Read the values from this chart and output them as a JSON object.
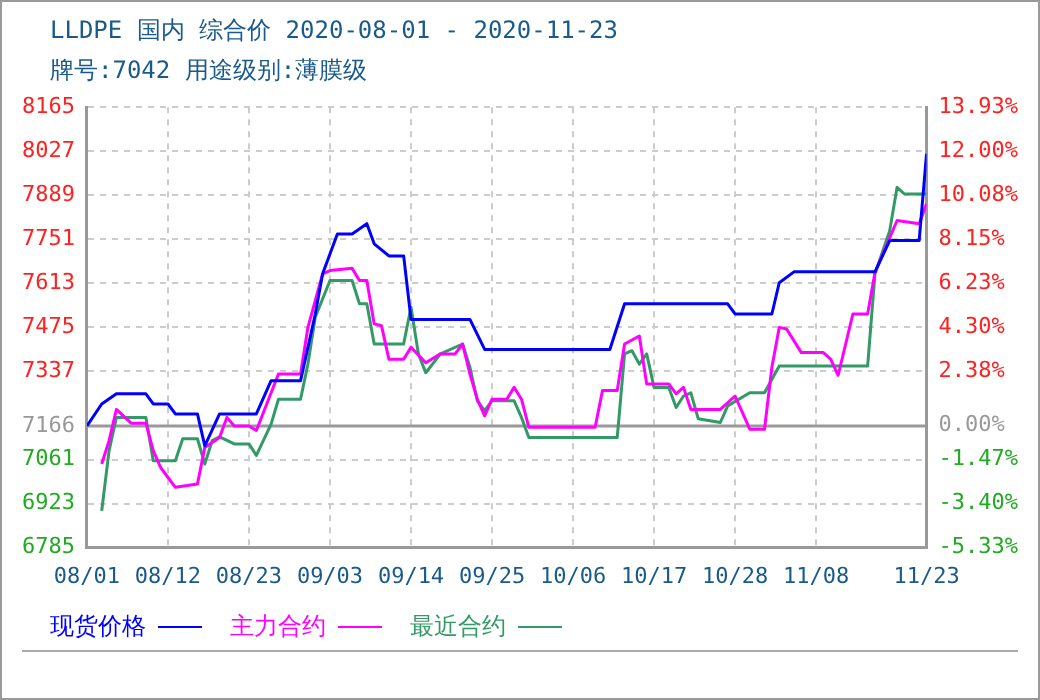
{
  "chart_data": {
    "type": "line",
    "title": "LLDPE 国内 综合价 2020-08-01 - 2020-11-23",
    "subtitle": "牌号:7042 用途级别:薄膜级",
    "xlim": [
      "2020-08-01",
      "2020-11-23"
    ],
    "xticks": [
      {
        "value": "2020-08-01",
        "label": "08/01"
      },
      {
        "value": "2020-08-12",
        "label": "08/12"
      },
      {
        "value": "2020-08-23",
        "label": "08/23"
      },
      {
        "value": "2020-09-03",
        "label": "09/03"
      },
      {
        "value": "2020-09-14",
        "label": "09/14"
      },
      {
        "value": "2020-09-25",
        "label": "09/25"
      },
      {
        "value": "2020-10-06",
        "label": "10/06"
      },
      {
        "value": "2020-10-17",
        "label": "10/17"
      },
      {
        "value": "2020-10-28",
        "label": "10/28"
      },
      {
        "value": "2020-11-08",
        "label": "11/08"
      },
      {
        "value": "2020-11-23",
        "label": "11/23"
      }
    ],
    "ylim": [
      6785,
      8165
    ],
    "yticks": [
      6785,
      6923,
      7061,
      7166,
      7337,
      7475,
      7613,
      7751,
      7889,
      8027,
      8165
    ],
    "y2lim": [
      -5.33,
      13.93
    ],
    "y2ticks": [
      {
        "value": -5.33,
        "label": "-5.33%"
      },
      {
        "value": -3.4,
        "label": "-3.40%"
      },
      {
        "value": -1.47,
        "label": "-1.47%"
      },
      {
        "value": 0,
        "label": "0.00%"
      },
      {
        "value": 2.38,
        "label": "2.38%"
      },
      {
        "value": 4.3,
        "label": "4.30%"
      },
      {
        "value": 6.23,
        "label": "6.23%"
      },
      {
        "value": 8.15,
        "label": "8.15%"
      },
      {
        "value": 10.08,
        "label": "10.08%"
      },
      {
        "value": 12,
        "label": "12.00%"
      },
      {
        "value": 13.93,
        "label": "13.93%"
      }
    ],
    "grid": true,
    "legend": "bottom",
    "marker": "none",
    "line_style": "solid",
    "ref_lines": [
      {
        "axis": "y",
        "value": 7166,
        "color": "#999999"
      }
    ],
    "series": [
      {
        "name": "现货价格",
        "color": "#0000ff",
        "x": [
          "2020-08-01",
          "2020-08-03",
          "2020-08-05",
          "2020-08-09",
          "2020-08-10",
          "2020-08-12",
          "2020-08-13",
          "2020-08-16",
          "2020-08-17",
          "2020-08-19",
          "2020-08-24",
          "2020-08-26",
          "2020-08-30",
          "2020-09-01",
          "2020-09-02",
          "2020-09-04",
          "2020-09-06",
          "2020-09-08",
          "2020-09-09",
          "2020-09-11",
          "2020-09-13",
          "2020-09-14",
          "2020-09-22",
          "2020-09-24",
          "2020-10-11",
          "2020-10-13",
          "2020-10-27",
          "2020-10-28",
          "2020-11-02",
          "2020-11-03",
          "2020-11-05",
          "2020-11-16",
          "2020-11-18",
          "2020-11-22",
          "2020-11-23"
        ],
        "values": [
          7166,
          7235,
          7267,
          7267,
          7235,
          7235,
          7204,
          7204,
          7104,
          7204,
          7204,
          7308,
          7308,
          7517,
          7643,
          7768,
          7768,
          7800,
          7737,
          7699,
          7699,
          7500,
          7500,
          7406,
          7406,
          7549,
          7549,
          7517,
          7517,
          7615,
          7649,
          7649,
          7747,
          7747,
          8019
        ]
      },
      {
        "name": "主力合约",
        "color": "#ff00ff",
        "x": [
          "2020-08-03",
          "2020-08-04",
          "2020-08-05",
          "2020-08-07",
          "2020-08-09",
          "2020-08-10",
          "2020-08-11",
          "2020-08-13",
          "2020-08-16",
          "2020-08-17",
          "2020-08-19",
          "2020-08-20",
          "2020-08-21",
          "2020-08-23",
          "2020-08-24",
          "2020-08-27",
          "2020-08-30",
          "2020-08-31",
          "2020-09-02",
          "2020-09-03",
          "2020-09-06",
          "2020-09-07",
          "2020-09-08",
          "2020-09-09",
          "2020-09-10",
          "2020-09-11",
          "2020-09-13",
          "2020-09-14",
          "2020-09-16",
          "2020-09-18",
          "2020-09-20",
          "2020-09-21",
          "2020-09-22",
          "2020-09-23",
          "2020-09-24",
          "2020-09-25",
          "2020-09-27",
          "2020-09-28",
          "2020-09-29",
          "2020-09-30",
          "2020-10-09",
          "2020-10-10",
          "2020-10-12",
          "2020-10-13",
          "2020-10-15",
          "2020-10-16",
          "2020-10-19",
          "2020-10-20",
          "2020-10-21",
          "2020-10-22",
          "2020-10-26",
          "2020-10-28",
          "2020-10-30",
          "2020-11-01",
          "2020-11-02",
          "2020-11-03",
          "2020-11-04",
          "2020-11-06",
          "2020-11-09",
          "2020-11-10",
          "2020-11-11",
          "2020-11-13",
          "2020-11-15",
          "2020-11-16",
          "2020-11-19",
          "2020-11-22",
          "2020-11-23"
        ],
        "values": [
          7047,
          7120,
          7218,
          7175,
          7175,
          7089,
          7036,
          6974,
          6984,
          7099,
          7130,
          7193,
          7166,
          7166,
          7152,
          7329,
          7329,
          7475,
          7643,
          7653,
          7660,
          7622,
          7622,
          7486,
          7480,
          7375,
          7375,
          7413,
          7364,
          7392,
          7392,
          7423,
          7329,
          7250,
          7198,
          7250,
          7250,
          7287,
          7250,
          7162,
          7162,
          7277,
          7277,
          7423,
          7448,
          7298,
          7298,
          7267,
          7287,
          7218,
          7218,
          7260,
          7156,
          7156,
          7350,
          7475,
          7470,
          7396,
          7396,
          7375,
          7325,
          7517,
          7517,
          7647,
          7810,
          7800,
          7862
        ]
      },
      {
        "name": "最近合约",
        "color": "#339966",
        "x": [
          "2020-08-03",
          "2020-08-04",
          "2020-08-05",
          "2020-08-09",
          "2020-08-10",
          "2020-08-13",
          "2020-08-14",
          "2020-08-16",
          "2020-08-17",
          "2020-08-18",
          "2020-08-19",
          "2020-08-21",
          "2020-08-23",
          "2020-08-24",
          "2020-08-26",
          "2020-08-27",
          "2020-08-30",
          "2020-08-31",
          "2020-09-01",
          "2020-09-03",
          "2020-09-06",
          "2020-09-07",
          "2020-09-08",
          "2020-09-09",
          "2020-09-13",
          "2020-09-14",
          "2020-09-15",
          "2020-09-16",
          "2020-09-18",
          "2020-09-21",
          "2020-09-22",
          "2020-09-23",
          "2020-09-24",
          "2020-09-25",
          "2020-09-28",
          "2020-09-29",
          "2020-09-30",
          "2020-10-12",
          "2020-10-13",
          "2020-10-14",
          "2020-10-15",
          "2020-10-16",
          "2020-10-17",
          "2020-10-19",
          "2020-10-20",
          "2020-10-21",
          "2020-10-22",
          "2020-10-23",
          "2020-10-26",
          "2020-10-27",
          "2020-10-30",
          "2020-11-01",
          "2020-11-03",
          "2020-11-15",
          "2020-11-16",
          "2020-11-18",
          "2020-11-19",
          "2020-11-20",
          "2020-11-23"
        ],
        "values": [
          6900,
          7089,
          7193,
          7193,
          7057,
          7057,
          7126,
          7126,
          7047,
          7120,
          7132,
          7110,
          7110,
          7074,
          7172,
          7250,
          7250,
          7360,
          7507,
          7622,
          7622,
          7549,
          7549,
          7423,
          7423,
          7538,
          7392,
          7333,
          7392,
          7423,
          7350,
          7245,
          7214,
          7245,
          7245,
          7193,
          7130,
          7130,
          7392,
          7402,
          7360,
          7392,
          7287,
          7287,
          7224,
          7260,
          7270,
          7189,
          7177,
          7229,
          7270,
          7270,
          7354,
          7354,
          7643,
          7778,
          7914,
          7893,
          7893
        ]
      }
    ]
  }
}
